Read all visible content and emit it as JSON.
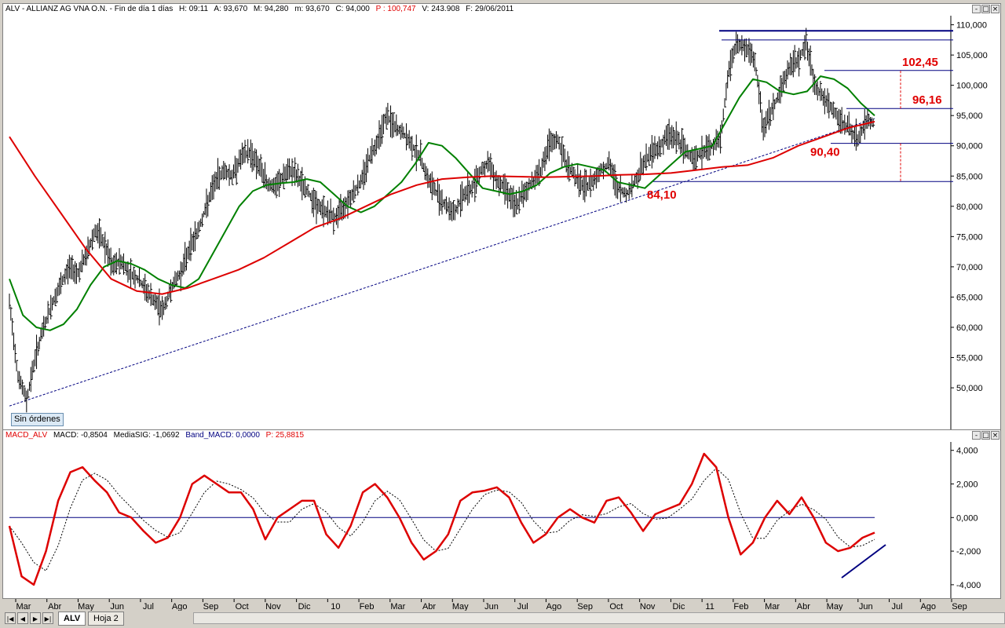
{
  "price_pane": {
    "title_parts": [
      "ALV - ALLIANZ AG VNA O.N. - Fin de día 1 días",
      "H: 09:11",
      "A: 93,670",
      "M: 94,280",
      "m: 93,670",
      "C: 94,000",
      "P : 100,747",
      "V: 243.908",
      "F: 29/06/2011"
    ],
    "p_color": "#e00000",
    "orders_label": "Sin órdenes"
  },
  "macd_pane": {
    "title_parts": [
      "MACD_ALV",
      "MACD: -0,8504",
      "MediaSIG: -1,0692",
      "Band_MACD: 0,0000",
      "P: 25,8815"
    ],
    "title_colors": [
      "#e00000",
      "#000000",
      "#000000",
      "#000080",
      "#e00000"
    ]
  },
  "window_buttons": [
    "-",
    "□",
    "×"
  ],
  "navigation": {
    "buttons": [
      "|◀",
      "◀",
      "▶",
      "▶|"
    ],
    "sheet_tabs": [
      "ALV",
      "Hoja 2"
    ]
  },
  "chart_data": [
    {
      "type": "line",
      "name": "price",
      "x_tick_labels": [
        "Mar",
        "Abr",
        "May",
        "Jun",
        "Jul",
        "Ago",
        "Sep",
        "Oct",
        "Nov",
        "Dic",
        "10",
        "Feb",
        "Mar",
        "Abr",
        "May",
        "Jun",
        "Jul",
        "Ago",
        "Sep",
        "Oct",
        "Nov",
        "Dic",
        "11",
        "Feb",
        "Mar",
        "Abr",
        "May",
        "Jun",
        "Jul",
        "Ago",
        "Sep"
      ],
      "y_tick_values": [
        50000,
        55000,
        60000,
        65000,
        70000,
        75000,
        80000,
        85000,
        90000,
        95000,
        100000,
        105000,
        110000
      ],
      "y_tick_labels": [
        "50,000",
        "55,000",
        "60,000",
        "65,000",
        "70,000",
        "75,000",
        "80,000",
        "85,000",
        "90,000",
        "95,000",
        "100,000",
        "105,000",
        "110,000"
      ],
      "ylim": [
        43000,
        111500
      ],
      "price_close": [
        64,
        52,
        48,
        55,
        60,
        64,
        67,
        70,
        69,
        72,
        76,
        74,
        70,
        71,
        69,
        68,
        66,
        64,
        63,
        67,
        69,
        73,
        76,
        80,
        84,
        86,
        85,
        88,
        89,
        87,
        84,
        83,
        85,
        86,
        84,
        82,
        80,
        79,
        78,
        80,
        82,
        84,
        88,
        91,
        95,
        93,
        92,
        90,
        88,
        84,
        82,
        80,
        79,
        82,
        83,
        86,
        87,
        84,
        83,
        80,
        82,
        84,
        86,
        90,
        91,
        87,
        85,
        83,
        84,
        86,
        87,
        83,
        82,
        84,
        87,
        89,
        90,
        92,
        91,
        89,
        88,
        89,
        90,
        91,
        103,
        107,
        106,
        104,
        93,
        96,
        99,
        103,
        104,
        107,
        100,
        98,
        96,
        94,
        93,
        91,
        94,
        94
      ],
      "sma_green": [
        68,
        62,
        60,
        59.5,
        60.5,
        63,
        67,
        70,
        71,
        70.5,
        69.5,
        68,
        67,
        66.5,
        68,
        72,
        76,
        80,
        82.5,
        83.5,
        83.8,
        84,
        84.5,
        84,
        82,
        80,
        79,
        80,
        82,
        84,
        87,
        90.5,
        90,
        88,
        85.5,
        83,
        82.5,
        82,
        82.5,
        83.5,
        85.5,
        86.5,
        87,
        86.5,
        86,
        84,
        83.5,
        83,
        85,
        87,
        89,
        89.5,
        90,
        94,
        98,
        101,
        100.5,
        99,
        98.5,
        99,
        101.5,
        101,
        99.5,
        97,
        95
      ],
      "sma_red": [
        91.5,
        85,
        79,
        73,
        68,
        66,
        65.5,
        66.5,
        68,
        69.5,
        71.5,
        74,
        76.5,
        78,
        80,
        82,
        83.5,
        84.5,
        84.8,
        85,
        84.9,
        84.8,
        84.9,
        85,
        85.2,
        85.3,
        85.5,
        86,
        86.5,
        86.8,
        88,
        90,
        91.5,
        93,
        94
      ],
      "trend_support": {
        "from": [
          0,
          47000
        ],
        "to": [
          1.0,
          94500
        ],
        "style": "dashed"
      },
      "levels": [
        {
          "label": "",
          "value": 109000
        },
        {
          "label": "",
          "value": 107500
        },
        {
          "label": "102,45",
          "value": 102450
        },
        {
          "label": "96,16",
          "value": 96160
        },
        {
          "label": "90,40",
          "value": 90400
        },
        {
          "label": "84,10",
          "value": 84100
        }
      ],
      "colors": {
        "bars": "#000000",
        "sma_green": "#008000",
        "sma_red": "#dd0000",
        "levels": "#000080",
        "labels": "#e00000"
      }
    },
    {
      "type": "line",
      "name": "MACD",
      "y_tick_values": [
        -4000,
        -2000,
        0,
        2000,
        4000
      ],
      "y_tick_labels": [
        "-4,000",
        "-2,000",
        "0,000",
        "2,000",
        "4,000"
      ],
      "ylim": [
        -4800,
        4500
      ],
      "macd": [
        -0.5,
        -3.5,
        -4,
        -2,
        1,
        2.7,
        3,
        2.2,
        1.5,
        0.3,
        0,
        -0.8,
        -1.5,
        -1.2,
        0,
        2,
        2.5,
        2,
        1.5,
        1.5,
        0.5,
        -1.3,
        0,
        0.5,
        1,
        1,
        -1,
        -1.8,
        -0.5,
        1.5,
        2,
        1.2,
        0,
        -1.5,
        -2.5,
        -2,
        -1,
        1,
        1.5,
        1.6,
        1.8,
        1.2,
        -0.3,
        -1.5,
        -1,
        0,
        0.5,
        0,
        -0.3,
        1,
        1.2,
        0.3,
        -0.8,
        0.2,
        0.5,
        0.8,
        2,
        3.8,
        3,
        0,
        -2.2,
        -1.5,
        0,
        1,
        0.2,
        1.2,
        0,
        -1.5,
        -2,
        -1.8,
        -1.2,
        -0.9
      ]
    }
  ]
}
